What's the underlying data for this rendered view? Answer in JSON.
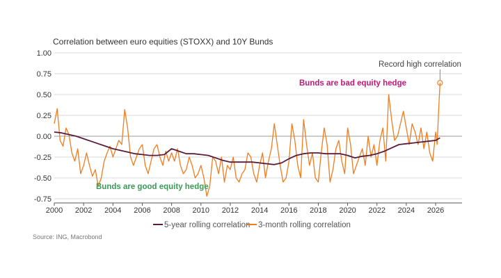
{
  "chart_data": {
    "type": "line",
    "title": "Correlation between euro equities (STOXX) and 10Y Bunds",
    "source": "Source: ING, Macrobond",
    "xlabel": "",
    "ylabel": "",
    "xlim": [
      2000,
      2027.8
    ],
    "ylim": [
      -0.8,
      1.0
    ],
    "y_ticks": [
      "1.00",
      "0.75",
      "0.50",
      "0.25",
      "0.00",
      "-0.25",
      "-0.50",
      "-0.75"
    ],
    "x_ticks": [
      "2000",
      "2002",
      "2004",
      "2006",
      "2008",
      "2010",
      "2012",
      "2014",
      "2016",
      "2018",
      "2020",
      "2022",
      "2024",
      "2026"
    ],
    "grid": "horizontal",
    "legend_position": "bottom",
    "colors": {
      "five_year": "#5a1b3a",
      "three_month": "#f07c1e",
      "grid": "#d9d9d9",
      "bad_hedge": "#c2187a",
      "good_hedge": "#3a9a56"
    },
    "series": [
      {
        "name": "5-year rolling correlation",
        "x": [
          2000,
          2000.5,
          2001,
          2001.5,
          2002,
          2002.5,
          2003,
          2003.5,
          2004,
          2004.5,
          2005,
          2005.5,
          2006,
          2006.5,
          2007,
          2007.5,
          2008,
          2008.5,
          2009,
          2009.5,
          2010,
          2010.5,
          2011,
          2011.5,
          2012,
          2012.5,
          2013,
          2013.5,
          2014,
          2014.5,
          2015,
          2015.5,
          2016,
          2016.5,
          2017,
          2017.5,
          2018,
          2018.5,
          2019,
          2019.5,
          2020,
          2020.5,
          2021,
          2021.5,
          2022,
          2022.5,
          2023,
          2023.5,
          2024,
          2024.5,
          2025,
          2025.5,
          2026,
          2026.3
        ],
        "values": [
          0.05,
          0.04,
          0.02,
          0.0,
          -0.03,
          -0.06,
          -0.09,
          -0.12,
          -0.15,
          -0.17,
          -0.19,
          -0.21,
          -0.22,
          -0.23,
          -0.23,
          -0.22,
          -0.15,
          -0.18,
          -0.21,
          -0.21,
          -0.22,
          -0.23,
          -0.26,
          -0.29,
          -0.31,
          -0.31,
          -0.31,
          -0.31,
          -0.32,
          -0.33,
          -0.34,
          -0.32,
          -0.27,
          -0.23,
          -0.21,
          -0.2,
          -0.2,
          -0.21,
          -0.21,
          -0.21,
          -0.23,
          -0.26,
          -0.24,
          -0.23,
          -0.21,
          -0.18,
          -0.14,
          -0.1,
          -0.09,
          -0.08,
          -0.07,
          -0.06,
          -0.05,
          -0.02
        ]
      },
      {
        "name": "3-month rolling correlation",
        "x": [
          2000,
          2000.2,
          2000.4,
          2000.6,
          2000.8,
          2001,
          2001.2,
          2001.4,
          2001.6,
          2001.8,
          2002,
          2002.2,
          2002.4,
          2002.6,
          2002.8,
          2003,
          2003.2,
          2003.4,
          2003.6,
          2003.8,
          2004,
          2004.2,
          2004.4,
          2004.6,
          2004.8,
          2005,
          2005.2,
          2005.4,
          2005.6,
          2005.8,
          2006,
          2006.2,
          2006.4,
          2006.6,
          2006.8,
          2007,
          2007.2,
          2007.4,
          2007.6,
          2007.8,
          2008,
          2008.2,
          2008.4,
          2008.6,
          2008.8,
          2009,
          2009.2,
          2009.4,
          2009.6,
          2009.8,
          2010,
          2010.2,
          2010.4,
          2010.6,
          2010.8,
          2011,
          2011.2,
          2011.4,
          2011.6,
          2011.8,
          2012,
          2012.2,
          2012.4,
          2012.6,
          2012.8,
          2013,
          2013.2,
          2013.4,
          2013.6,
          2013.8,
          2014,
          2014.2,
          2014.4,
          2014.6,
          2014.8,
          2015,
          2015.2,
          2015.4,
          2015.6,
          2015.8,
          2016,
          2016.2,
          2016.4,
          2016.6,
          2016.8,
          2017,
          2017.2,
          2017.4,
          2017.6,
          2017.8,
          2018,
          2018.2,
          2018.4,
          2018.6,
          2018.8,
          2019,
          2019.2,
          2019.4,
          2019.6,
          2019.8,
          2020,
          2020.2,
          2020.4,
          2020.6,
          2020.8,
          2021,
          2021.2,
          2021.4,
          2021.6,
          2021.8,
          2022,
          2022.2,
          2022.4,
          2022.6,
          2022.8,
          2023,
          2023.2,
          2023.4,
          2023.6,
          2023.8,
          2024,
          2024.2,
          2024.4,
          2024.6,
          2024.8,
          2025,
          2025.2,
          2025.4,
          2025.6,
          2025.8,
          2026,
          2026.1,
          2026.2,
          2026.3
        ],
        "values": [
          0.15,
          0.33,
          -0.05,
          -0.12,
          0.1,
          0.02,
          -0.2,
          -0.3,
          -0.15,
          -0.45,
          -0.35,
          -0.2,
          -0.35,
          -0.48,
          -0.4,
          -0.6,
          -0.5,
          -0.3,
          -0.2,
          -0.12,
          -0.25,
          -0.15,
          -0.05,
          -0.1,
          0.32,
          0.1,
          -0.25,
          -0.35,
          -0.25,
          -0.15,
          -0.1,
          -0.35,
          -0.45,
          -0.3,
          -0.15,
          -0.1,
          -0.25,
          -0.35,
          -0.18,
          -0.3,
          -0.2,
          -0.3,
          -0.15,
          -0.35,
          -0.45,
          -0.4,
          -0.25,
          -0.35,
          -0.5,
          -0.45,
          -0.35,
          -0.5,
          -0.72,
          -0.6,
          -0.25,
          -0.3,
          -0.45,
          -0.25,
          -0.55,
          -0.35,
          -0.4,
          -0.25,
          -0.5,
          -0.55,
          -0.45,
          -0.4,
          -0.2,
          -0.25,
          -0.45,
          -0.55,
          -0.35,
          -0.2,
          -0.5,
          -0.3,
          -0.15,
          0.15,
          -0.1,
          -0.35,
          -0.55,
          -0.5,
          -0.3,
          0.15,
          -0.05,
          -0.35,
          -0.5,
          0.2,
          -0.1,
          -0.35,
          -0.2,
          -0.5,
          -0.55,
          -0.2,
          0.1,
          -0.1,
          -0.55,
          -0.4,
          -0.15,
          -0.05,
          -0.3,
          -0.45,
          0.1,
          -0.1,
          -0.45,
          -0.35,
          -0.25,
          -0.15,
          -0.35,
          0.0,
          -0.25,
          -0.1,
          -0.35,
          -0.05,
          0.1,
          -0.3,
          0.5,
          0.2,
          -0.05,
          0.0,
          0.15,
          0.3,
          0.1,
          -0.1,
          0.15,
          0.05,
          -0.1,
          0.1,
          -0.15,
          0.05,
          -0.2,
          -0.3,
          0.05,
          -0.1,
          0.3,
          0.64
        ]
      }
    ],
    "annotations": [
      {
        "text": "Record high correlation",
        "x": 2026.3,
        "y": 0.64
      },
      {
        "text": "Bunds are bad equity hedge",
        "x": 2022.0,
        "y": 0.6
      },
      {
        "text": "Bunds are good equity hedge",
        "x": 2006.2,
        "y": -0.64
      }
    ]
  }
}
